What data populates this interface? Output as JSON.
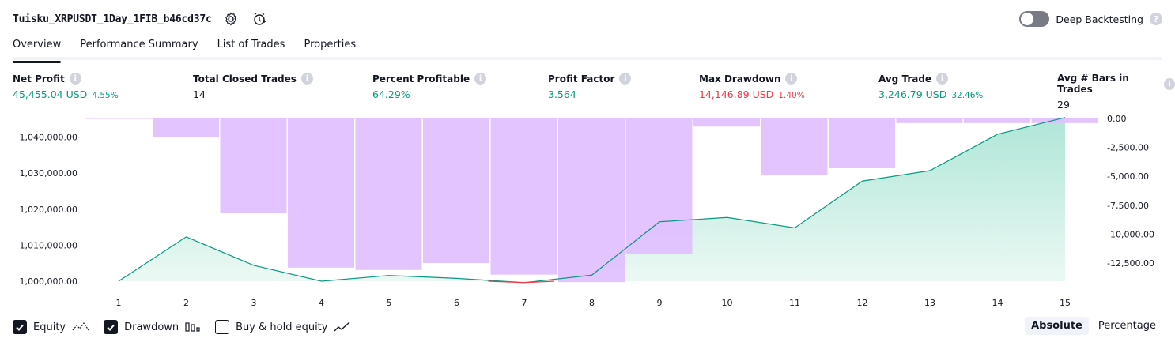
{
  "header": {
    "strategy_title": "Tuisku_XRPUSDT_1Day_1FIB_b46cd37c",
    "deep_backtesting_label": "Deep Backtesting",
    "deep_backtesting_on": false
  },
  "tabs": [
    {
      "label": "Overview",
      "active": true
    },
    {
      "label": "Performance Summary",
      "active": false
    },
    {
      "label": "List of Trades",
      "active": false
    },
    {
      "label": "Properties",
      "active": false
    }
  ],
  "metrics": {
    "net_profit": {
      "label": "Net Profit",
      "value": "45,455.04 USD",
      "pct": "4.55%"
    },
    "total_closed_trades": {
      "label": "Total Closed Trades",
      "value": "14"
    },
    "percent_profitable": {
      "label": "Percent Profitable",
      "value": "64.29%"
    },
    "profit_factor": {
      "label": "Profit Factor",
      "value": "3.564"
    },
    "max_drawdown": {
      "label": "Max Drawdown",
      "value": "14,146.89 USD",
      "pct": "1.40%"
    },
    "avg_trade": {
      "label": "Avg Trade",
      "value": "3,246.79 USD",
      "pct": "32.46%"
    },
    "avg_bars": {
      "label": "Avg # Bars in Trades",
      "value": "29"
    }
  },
  "chart_data": {
    "type": "line",
    "x": [
      1,
      2,
      3,
      4,
      5,
      6,
      7,
      8,
      9,
      10,
      11,
      12,
      13,
      14,
      15
    ],
    "series": [
      {
        "name": "Equity",
        "type": "area",
        "color": "#089981",
        "values": [
          1000000,
          1012300,
          1004400,
          1000000,
          1001600,
          1000800,
          999600,
          1001700,
          1016500,
          1017700,
          1014800,
          1027800,
          1030700,
          1040800,
          1045455
        ]
      },
      {
        "name": "Drawdown",
        "type": "bar",
        "color": "#e1bfff",
        "values": [
          0,
          -1600,
          -8200,
          -12900,
          -13100,
          -12500,
          -13500,
          -14147,
          -11700,
          -700,
          -4900,
          -4300,
          -400,
          -400,
          -400
        ]
      }
    ],
    "y_left": {
      "ticks": [
        "1,000,000.00",
        "1,010,000.00",
        "1,020,000.00",
        "1,030,000.00",
        "1,040,000.00"
      ],
      "ylim": [
        999000,
        1045455
      ]
    },
    "y_right": {
      "ticks": [
        "0.00",
        "-2,500.00",
        "-5,000.00",
        "-7,500.00",
        "-10,000.00",
        "-12,500.00"
      ],
      "ylim": [
        -14147,
        0
      ]
    },
    "xlabel": "",
    "ylabel": "",
    "grid": false
  },
  "legend": {
    "equity_label": "Equity",
    "equity_checked": true,
    "drawdown_label": "Drawdown",
    "drawdown_checked": true,
    "buyhold_label": "Buy & hold equity",
    "buyhold_checked": false
  },
  "scale": {
    "absolute_label": "Absolute",
    "percentage_label": "Percentage",
    "active": "absolute"
  },
  "icons": [
    "settings-icon",
    "alert-clock-icon",
    "help-icon",
    "info-icon",
    "equity-line-icon",
    "drawdown-bars-icon",
    "buyhold-line-icon",
    "check-icon"
  ]
}
